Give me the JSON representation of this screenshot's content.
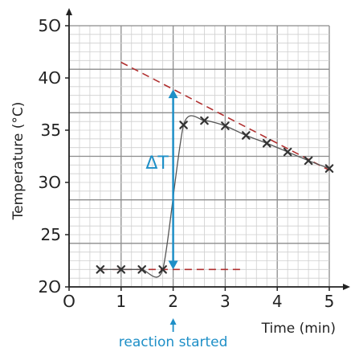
{
  "chart_data": {
    "type": "scatter",
    "title": "",
    "xlabel": "Time (min)",
    "ylabel": "Temperature (°C)",
    "xlim": [
      0,
      5
    ],
    "ylim": [
      20,
      50
    ],
    "x_ticks": [
      "O",
      "1",
      "2",
      "3",
      "4",
      "5"
    ],
    "y_ticks": [
      "2O",
      "25",
      "3O",
      "35",
      "4O",
      "5O"
    ],
    "grid": true,
    "series": [
      {
        "points": [
          {
            "x": 0.6,
            "y": 22.0
          },
          {
            "x": 1.0,
            "y": 22.0
          },
          {
            "x": 1.4,
            "y": 22.0
          },
          {
            "x": 1.8,
            "y": 22.0
          },
          {
            "x": 2.2,
            "y": 38.6
          },
          {
            "x": 2.6,
            "y": 39.1
          },
          {
            "x": 3.0,
            "y": 38.5
          },
          {
            "x": 3.4,
            "y": 37.4
          },
          {
            "x": 3.8,
            "y": 36.5
          },
          {
            "x": 4.2,
            "y": 35.5
          },
          {
            "x": 4.6,
            "y": 34.5
          },
          {
            "x": 5.0,
            "y": 33.6
          }
        ]
      }
    ],
    "extrapolation_lines": [
      {
        "x": [
          0.6,
          3.3
        ],
        "y": [
          22.0,
          22.0
        ]
      },
      {
        "x": [
          1.0,
          5.0
        ],
        "y": [
          45.8,
          33.4
        ]
      }
    ],
    "delta_t": {
      "label": "ΔT",
      "x": 2.0,
      "y_from": 22.0,
      "y_to": 42.7
    },
    "annotation": {
      "label": "reaction started",
      "x": 2.0
    }
  },
  "colors": {
    "marker": "#333333",
    "curve": "#555555",
    "extrapolation": "#b03030",
    "accent": "#1e8fc7",
    "minor_grid": "#cfcfcf",
    "major_grid": "#8c8c8c",
    "text": "#222222"
  }
}
